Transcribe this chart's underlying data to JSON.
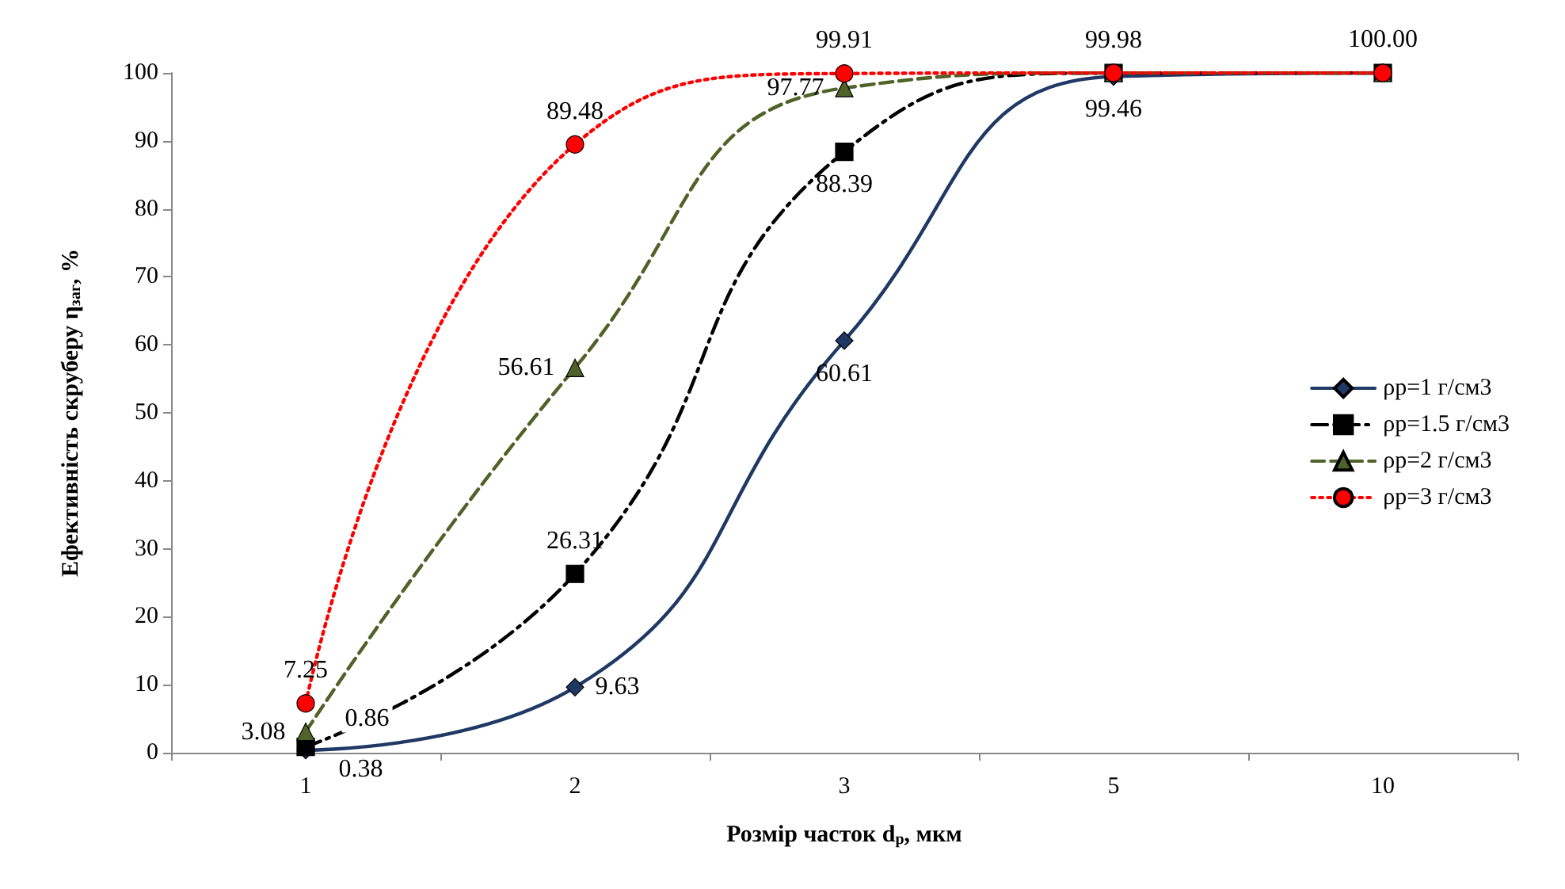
{
  "chart_data": {
    "type": "line",
    "xlabel": "Розмір часток d$_{p}$, мкм",
    "ylabel": "Ефективність скруберу η$_{заг}$, %",
    "categories": [
      "1",
      "2",
      "3",
      "5",
      "10"
    ],
    "ylim": [
      0,
      100
    ],
    "yticks": [
      0,
      10,
      20,
      30,
      40,
      50,
      60,
      70,
      80,
      90,
      100
    ],
    "grid": false,
    "legend": "right",
    "series": [
      {
        "name": "ρp=1 г/см3",
        "color": "#1f3864",
        "marker": "diamond",
        "line_style": "solid",
        "values": [
          0.38,
          9.63,
          60.61,
          99.46,
          100
        ],
        "value_labels": [
          "0.38",
          "9.63",
          "60.61",
          "99.46",
          null
        ]
      },
      {
        "name": "ρp=1.5 г/см3",
        "color": "#000000",
        "marker": "square",
        "line_style": "dashdot",
        "values": [
          0.86,
          26.31,
          88.39,
          99.98,
          100
        ],
        "value_labels": [
          "0.86",
          "26.31",
          "88.39",
          "99.98",
          null
        ]
      },
      {
        "name": "ρp=2 г/см3",
        "color": "#4f6228",
        "marker": "triangle",
        "line_style": "dashed",
        "values": [
          3.08,
          56.61,
          97.77,
          100,
          100
        ],
        "value_labels": [
          "3.08",
          "56.61",
          "97.77",
          null,
          null
        ]
      },
      {
        "name": "ρp=3 г/см3",
        "color": "#ff0000",
        "marker": "circle",
        "line_style": "dotted",
        "values": [
          7.25,
          89.48,
          99.91,
          100,
          100
        ],
        "value_labels": [
          "7.25",
          "89.48",
          "99.91",
          null,
          "100.00"
        ]
      }
    ]
  }
}
